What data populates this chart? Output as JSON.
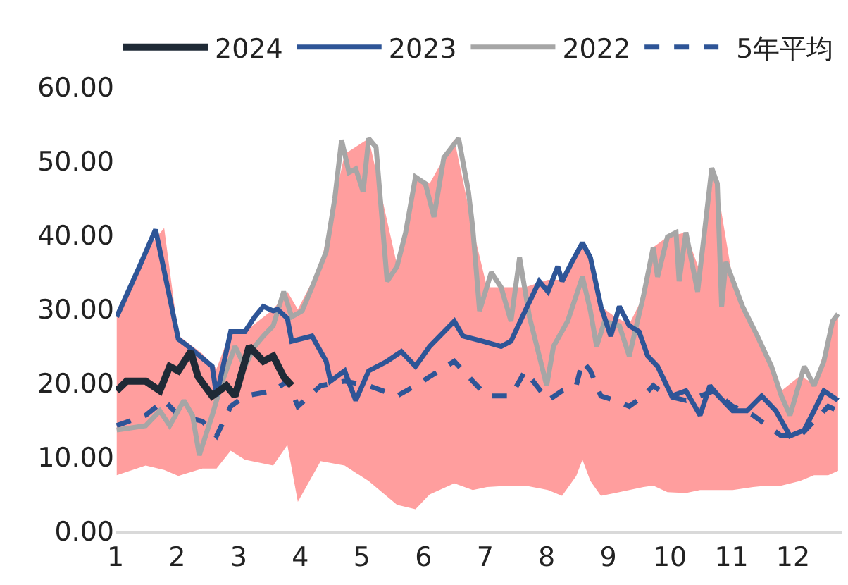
{
  "chart_data": {
    "type": "line",
    "legend": "top",
    "grid": false,
    "xlim": [
      1,
      12.8
    ],
    "xticks": [
      1,
      2,
      3,
      4,
      5,
      6,
      7,
      8,
      9,
      10,
      11,
      12
    ],
    "ylim": [
      0,
      60
    ],
    "yticks": [
      {
        "value": 0,
        "label": "0.00"
      },
      {
        "value": 10,
        "label": "10.00"
      },
      {
        "value": 20,
        "label": "20.00"
      },
      {
        "value": 30,
        "label": "30.00"
      },
      {
        "value": 40,
        "label": "40.00"
      },
      {
        "value": 50,
        "label": "50.00"
      },
      {
        "value": 60,
        "label": "60.00"
      }
    ],
    "series": [
      {
        "name": "2024",
        "color": "#1f2a36",
        "x": [
          1.02,
          1.18,
          1.49,
          1.72,
          1.88,
          2.02,
          2.22,
          2.34,
          2.57,
          2.8,
          2.94,
          3.17,
          3.4,
          3.56,
          3.73,
          3.86
        ],
        "values": [
          19,
          20.3,
          20.3,
          19,
          22.3,
          21.7,
          24.3,
          20.9,
          18.3,
          19.7,
          18.3,
          25,
          23,
          23.7,
          20.9,
          19.7
        ]
      },
      {
        "name": "2023",
        "color": "#2e5597",
        "x": [
          1.02,
          1.4,
          1.65,
          2.02,
          2.18,
          2.57,
          2.64,
          2.87,
          3.1,
          3.26,
          3.4,
          3.56,
          3.63,
          3.79,
          3.86,
          4.19,
          4.42,
          4.49,
          4.72,
          4.9,
          5.11,
          5.41,
          5.64,
          5.87,
          6.1,
          6.5,
          6.64,
          6.96,
          7.26,
          7.42,
          7.65,
          7.88,
          8.02,
          8.18,
          8.25,
          8.41,
          8.58,
          8.71,
          8.88,
          9.04,
          9.18,
          9.34,
          9.5,
          9.64,
          9.8,
          10.03,
          10.26,
          10.49,
          10.65,
          10.79,
          11.02,
          11.25,
          11.49,
          11.72,
          11.95,
          12.18,
          12.34,
          12.5,
          12.73
        ],
        "values": [
          29,
          36,
          40.8,
          26,
          25,
          22.3,
          18.3,
          27,
          27,
          29,
          30.4,
          29.8,
          30,
          28.8,
          25.7,
          26.4,
          23,
          20.3,
          21.7,
          17.7,
          21.7,
          23,
          24.3,
          22.3,
          25,
          28.4,
          26.4,
          25.7,
          25,
          25.7,
          29.8,
          33.8,
          32.4,
          35.8,
          33.8,
          36.4,
          39,
          37,
          30.4,
          26.4,
          30.4,
          27.8,
          27,
          23.7,
          22.3,
          18.3,
          19,
          15.7,
          19.7,
          18.3,
          16.3,
          16.3,
          18.3,
          16.3,
          12.9,
          13.7,
          16.3,
          19,
          17.7
        ]
      },
      {
        "name": "2022",
        "color": "#a6a6a6",
        "x": [
          1.02,
          1.49,
          1.72,
          1.88,
          2.11,
          2.25,
          2.36,
          2.57,
          2.71,
          2.94,
          3.1,
          3.26,
          3.4,
          3.56,
          3.73,
          3.86,
          4.03,
          4.19,
          4.42,
          4.56,
          4.67,
          4.79,
          4.9,
          5.02,
          5.11,
          5.23,
          5.41,
          5.57,
          5.71,
          5.87,
          6.03,
          6.17,
          6.33,
          6.57,
          6.73,
          6.8,
          6.91,
          7.1,
          7.26,
          7.42,
          7.56,
          7.72,
          8,
          8.11,
          8.34,
          8.58,
          8.71,
          8.81,
          8.94,
          9.18,
          9.34,
          9.57,
          9.73,
          9.8,
          9.96,
          10.1,
          10.15,
          10.26,
          10.45,
          10.68,
          10.77,
          10.84,
          10.91,
          11.18,
          11.42,
          11.65,
          11.81,
          11.95,
          12.18,
          12.34,
          12.5,
          12.64,
          12.73
        ],
        "values": [
          13.7,
          14.3,
          16.3,
          14.3,
          17.7,
          15.7,
          10.3,
          15.7,
          19.7,
          25,
          22.3,
          25,
          26.4,
          27.8,
          32.4,
          29,
          29.8,
          33,
          37.8,
          45,
          52.9,
          48.5,
          49,
          45.9,
          53.1,
          51.9,
          33.8,
          35.8,
          40.4,
          47.9,
          47,
          42.5,
          50.5,
          53.1,
          45.9,
          41,
          29.8,
          35,
          33,
          28.4,
          37,
          29,
          19.7,
          25,
          28.4,
          34.4,
          29.8,
          25,
          28.4,
          27.8,
          23.7,
          31.8,
          38.4,
          34.4,
          39.8,
          40.4,
          33.8,
          40.4,
          32.4,
          49.1,
          47,
          30.4,
          36.4,
          30.4,
          26.4,
          22.3,
          18.3,
          15.7,
          22.3,
          19.7,
          23,
          28.4,
          29.4
        ]
      },
      {
        "name": "5年平均",
        "color": "#2e5597",
        "line_style": "dashed",
        "x": [
          1.02,
          1.49,
          1.79,
          2.02,
          2.41,
          2.64,
          2.87,
          3.1,
          3.56,
          3.79,
          3.96,
          4.33,
          4.72,
          5.11,
          5.57,
          5.87,
          6.1,
          6.5,
          6.8,
          7.03,
          7.42,
          7.65,
          8.02,
          8.25,
          8.48,
          8.58,
          8.71,
          8.88,
          9.11,
          9.34,
          9.57,
          9.73,
          9.96,
          10.26,
          10.49,
          10.72,
          11.02,
          11.35,
          11.58,
          11.81,
          12.11,
          12.34,
          12.57,
          12.73
        ],
        "values": [
          14.3,
          15.7,
          17.7,
          15.7,
          14.9,
          12.9,
          16.9,
          18.3,
          19,
          20.3,
          16.9,
          19.7,
          20.3,
          19.7,
          18.3,
          19.7,
          20.9,
          23,
          20.3,
          18.3,
          18.3,
          21.7,
          17.7,
          19,
          19.7,
          23,
          21.7,
          18.3,
          17.7,
          16.9,
          18.3,
          19.7,
          18.3,
          17.7,
          18.3,
          19,
          16.9,
          15.7,
          14.3,
          12.9,
          12.9,
          14.9,
          16.9,
          16.3
        ],
        "lower": [
          7.6,
          8.9,
          8.3,
          7.5,
          8.5,
          8.5,
          10.9,
          9.7,
          8.9,
          11.7,
          4,
          9.5,
          8.9,
          6.8,
          3.6,
          3,
          5,
          6.5,
          5.6,
          6,
          6.2,
          6.2,
          5.6,
          4.8,
          7.5,
          9.7,
          6.8,
          4.8,
          5.2,
          5.6,
          6,
          6.2,
          5.3,
          5.2,
          5.6,
          5.6,
          5.6,
          6,
          6.2,
          6.2,
          6.8,
          7.6,
          7.6,
          8.2
        ],
        "upper": [
          29,
          38,
          41,
          26.5,
          24,
          22,
          27,
          27,
          30,
          32.4,
          30,
          36,
          51,
          53.1,
          36,
          47.9,
          47,
          53,
          41,
          33,
          33,
          33,
          34,
          34,
          37.5,
          39,
          37,
          30.4,
          29,
          28,
          31.8,
          38.4,
          39.8,
          40.4,
          35,
          49,
          34,
          28,
          24,
          19,
          21,
          20,
          26,
          29.4
        ]
      }
    ]
  }
}
